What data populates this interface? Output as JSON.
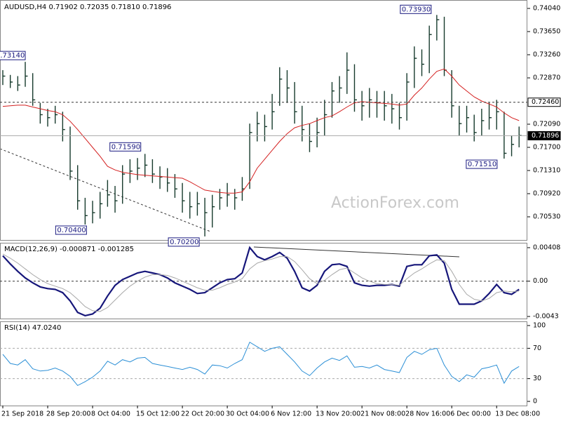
{
  "chart_data": [
    {
      "type": "ohlc",
      "title": "AUDUSD,H4  0.71902 0.72035 0.71810 0.71896",
      "watermark": "ActionForex.com",
      "color": "#163a2c",
      "high": [
        0.73,
        0.7292,
        0.729,
        0.7314,
        0.7295,
        0.7245,
        0.7235,
        0.724,
        0.723,
        0.7205,
        0.714,
        0.7085,
        0.708,
        0.7095,
        0.7115,
        0.7105,
        0.714,
        0.715,
        0.7152,
        0.7159,
        0.715,
        0.7138,
        0.7135,
        0.7125,
        0.711,
        0.7095,
        0.7095,
        0.7085,
        0.709,
        0.71,
        0.711,
        0.71,
        0.712,
        0.721,
        0.723,
        0.7225,
        0.726,
        0.7305,
        0.73,
        0.728,
        0.724,
        0.721,
        0.722,
        0.725,
        0.728,
        0.729,
        0.733,
        0.731,
        0.7265,
        0.727,
        0.7265,
        0.7265,
        0.726,
        0.7245,
        0.7295,
        0.734,
        0.7335,
        0.7375,
        0.7393,
        0.739,
        0.73,
        0.724,
        0.724,
        0.7225,
        0.7235,
        0.7245,
        0.725,
        0.723,
        0.719,
        0.7205
      ],
      "low": [
        0.7275,
        0.727,
        0.7265,
        0.7272,
        0.724,
        0.721,
        0.7205,
        0.721,
        0.718,
        0.7115,
        0.7065,
        0.704,
        0.7042,
        0.705,
        0.707,
        0.706,
        0.7075,
        0.711,
        0.7115,
        0.712,
        0.711,
        0.71,
        0.7095,
        0.7085,
        0.706,
        0.705,
        0.7055,
        0.702,
        0.7035,
        0.7065,
        0.707,
        0.7065,
        0.708,
        0.71,
        0.718,
        0.718,
        0.72,
        0.724,
        0.7245,
        0.721,
        0.718,
        0.7162,
        0.717,
        0.719,
        0.722,
        0.7245,
        0.726,
        0.723,
        0.7215,
        0.722,
        0.722,
        0.7215,
        0.721,
        0.72,
        0.7215,
        0.727,
        0.729,
        0.7295,
        0.735,
        0.729,
        0.722,
        0.719,
        0.7195,
        0.718,
        0.719,
        0.72,
        0.72,
        0.7151,
        0.7155,
        0.717
      ],
      "close": [
        0.729,
        0.728,
        0.7275,
        0.729,
        0.725,
        0.7225,
        0.722,
        0.7225,
        0.72,
        0.713,
        0.708,
        0.7055,
        0.706,
        0.7075,
        0.709,
        0.708,
        0.7125,
        0.713,
        0.7135,
        0.714,
        0.7125,
        0.712,
        0.711,
        0.71,
        0.708,
        0.707,
        0.7075,
        0.706,
        0.707,
        0.7085,
        0.709,
        0.7085,
        0.71,
        0.7195,
        0.721,
        0.7205,
        0.723,
        0.7285,
        0.727,
        0.723,
        0.72,
        0.718,
        0.7195,
        0.7225,
        0.7265,
        0.727,
        0.73,
        0.725,
        0.724,
        0.725,
        0.7245,
        0.724,
        0.7235,
        0.722,
        0.728,
        0.732,
        0.731,
        0.736,
        0.7385,
        0.73,
        0.724,
        0.721,
        0.722,
        0.7195,
        0.7215,
        0.722,
        0.723,
        0.716,
        0.7175,
        0.719
      ],
      "series": [
        {
          "color": "#d42020",
          "values": [
            0.7239,
            0.724,
            0.7241,
            0.7241,
            0.7238,
            0.7235,
            0.7232,
            0.723,
            0.7225,
            0.7214,
            0.72,
            0.7185,
            0.717,
            0.7155,
            0.7138,
            0.7132,
            0.7128,
            0.7126,
            0.7124,
            0.7123,
            0.7122,
            0.7121,
            0.712,
            0.7119,
            0.7118,
            0.7112,
            0.7105,
            0.7098,
            0.7096,
            0.7094,
            0.7093,
            0.7093,
            0.7095,
            0.7112,
            0.7135,
            0.715,
            0.7165,
            0.718,
            0.7193,
            0.7203,
            0.7207,
            0.721,
            0.7215,
            0.722,
            0.7223,
            0.723,
            0.7238,
            0.7245,
            0.7247,
            0.7246,
            0.7245,
            0.7244,
            0.7243,
            0.7241,
            0.7243,
            0.7258,
            0.727,
            0.7285,
            0.7298,
            0.7302,
            0.729,
            0.7275,
            0.7265,
            0.7255,
            0.7248,
            0.7243,
            0.7238,
            0.7228,
            0.722,
            0.7215
          ]
        }
      ],
      "annotations": [
        "0.73140",
        "0.70400",
        "0.71590",
        "0.70200",
        "0.73930",
        "0.71510"
      ],
      "levels": [
        {
          "value": 0.7246,
          "label": "0.72460"
        },
        {
          "value": 0.71896,
          "label": "0.71896"
        }
      ],
      "ylim": [
        0.7014,
        0.74182
      ],
      "yticks": [
        {
          "value": 0.7404,
          "label": "0.74040"
        },
        {
          "value": 0.7365,
          "label": "0.73650"
        },
        {
          "value": 0.7326,
          "label": "0.73260"
        },
        {
          "value": 0.7287,
          "label": "0.72870"
        },
        {
          "value": 0.7209,
          "label": "0.72090"
        },
        {
          "value": 0.717,
          "label": "0.71700"
        },
        {
          "value": 0.7131,
          "label": "0.71310"
        },
        {
          "value": 0.7092,
          "label": "0.70920"
        },
        {
          "value": 0.7053,
          "label": "0.70530"
        }
      ]
    },
    {
      "type": "line",
      "title": "MACD(12,26,9) -0.000871 -0.001285",
      "series": [
        {
          "color": "#16167a",
          "values": [
            0.0031,
            0.0021,
            0.0012,
            0.0004,
            -0.0002,
            -0.0007,
            -0.0009,
            -0.001,
            -0.0014,
            -0.0024,
            -0.0038,
            -0.0042,
            -0.004,
            -0.0033,
            -0.0018,
            -0.0005,
            0.0002,
            0.0006,
            0.001,
            0.0012,
            0.001,
            0.0008,
            0.0004,
            -0.0002,
            -0.0006,
            -0.001,
            -0.0015,
            -0.0014,
            -0.0008,
            -0.0002,
            0.0002,
            0.0003,
            0.001,
            0.0041,
            0.003,
            0.0026,
            0.003,
            0.0035,
            0.0028,
            0.0012,
            -0.0008,
            -0.0012,
            -0.0005,
            0.0012,
            0.002,
            0.0021,
            0.0018,
            -0.0002,
            -0.0005,
            -0.0006,
            -0.0005,
            -0.0005,
            -0.0004,
            -0.0006,
            0.0018,
            0.002,
            0.002,
            0.0031,
            0.0032,
            0.0022,
            -0.001,
            -0.0028,
            -0.0028,
            -0.0028,
            -0.0024,
            -0.0015,
            -0.0004,
            -0.0014,
            -0.0016,
            -0.001
          ]
        },
        {
          "color": "#a8a8a8",
          "values": [
            0.0033,
            0.0028,
            0.0022,
            0.0015,
            0.0008,
            0.0002,
            -0.0003,
            -0.0006,
            -0.0009,
            -0.0014,
            -0.0022,
            -0.0031,
            -0.0036,
            -0.0037,
            -0.0032,
            -0.0023,
            -0.0014,
            -0.0006,
            0.0,
            0.0005,
            0.0008,
            0.0008,
            0.0007,
            0.0004,
            0.0,
            -0.0004,
            -0.0008,
            -0.0011,
            -0.0011,
            -0.0008,
            -0.0004,
            -0.0001,
            0.0003,
            0.0015,
            0.0022,
            0.0025,
            0.0027,
            0.003,
            0.003,
            0.0024,
            0.0014,
            0.0003,
            -0.0003,
            0.0001,
            0.0008,
            0.0014,
            0.0016,
            0.001,
            0.0004,
            0.0,
            -0.0003,
            -0.0004,
            -0.0004,
            -0.0005,
            0.0003,
            0.001,
            0.0015,
            0.0021,
            0.0026,
            0.0025,
            0.0012,
            -0.0004,
            -0.0016,
            -0.0022,
            -0.0024,
            -0.0021,
            -0.0014,
            -0.0012,
            -0.0013,
            -0.0012
          ]
        }
      ],
      "ylim": [
        -0.00464,
        0.00468
      ],
      "yticks": [
        0.004085,
        {
          "value": 0,
          "label": "0.00"
        },
        -0.0043
      ]
    },
    {
      "type": "line",
      "title": "RSI(14) 47.0240",
      "series": [
        {
          "color": "#2b8fd6",
          "values": [
            62,
            50,
            48,
            55,
            43,
            40,
            41,
            44,
            40,
            33,
            21,
            26,
            32,
            40,
            53,
            48,
            55,
            52,
            57,
            58,
            50,
            48,
            46,
            44,
            42,
            45,
            42,
            36,
            48,
            47,
            44,
            50,
            55,
            78,
            72,
            66,
            70,
            72,
            62,
            52,
            40,
            34,
            44,
            52,
            57,
            54,
            60,
            45,
            46,
            44,
            48,
            42,
            40,
            38,
            58,
            66,
            62,
            68,
            70,
            48,
            33,
            26,
            35,
            32,
            43,
            45,
            48,
            24,
            40,
            46
          ]
        }
      ],
      "levels": [
        70,
        30
      ],
      "ylim": [
        -5.5,
        105.5
      ],
      "yticks": [
        100,
        70,
        30,
        0
      ],
      "xtick_labels": [
        "21 Sep 2018",
        "28 Sep 20:00",
        "8 Oct 04:00",
        "15 Oct 12:00",
        "22 Oct 20:00",
        "30 Oct 04:00",
        "6 Nov 12:00",
        "13 Nov 20:00",
        "21 Nov 08:00",
        "28 Nov 16:00",
        "6 Dec 00:00",
        "13 Dec 08:00"
      ]
    }
  ]
}
